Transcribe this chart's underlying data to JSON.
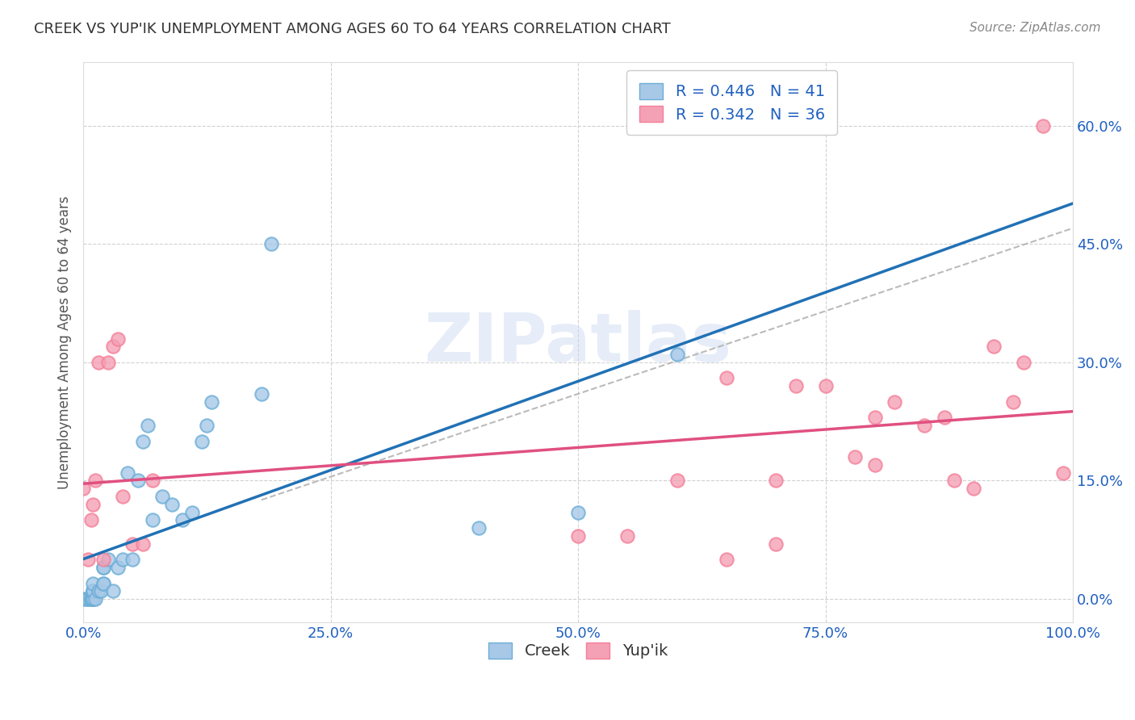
{
  "title": "CREEK VS YUP'IK UNEMPLOYMENT AMONG AGES 60 TO 64 YEARS CORRELATION CHART",
  "source": "Source: ZipAtlas.com",
  "ylabel": "Unemployment Among Ages 60 to 64 years",
  "creek_R": 0.446,
  "creek_N": 41,
  "yupik_R": 0.342,
  "yupik_N": 36,
  "creek_color": "#a8c8e8",
  "yupik_color": "#f4a0b5",
  "creek_edge_color": "#6baed6",
  "yupik_edge_color": "#f48099",
  "creek_line_color": "#2171b5",
  "yupik_line_color": "#e05080",
  "legend_text_color": "#2060c0",
  "background_color": "#ffffff",
  "creek_x": [
    0.0,
    0.003,
    0.005,
    0.007,
    0.008,
    0.01,
    0.01,
    0.01,
    0.01,
    0.01,
    0.01,
    0.01,
    0.012,
    0.015,
    0.018,
    0.02,
    0.02,
    0.02,
    0.02,
    0.025,
    0.03,
    0.035,
    0.04,
    0.045,
    0.05,
    0.055,
    0.06,
    0.065,
    0.07,
    0.08,
    0.09,
    0.1,
    0.11,
    0.12,
    0.125,
    0.13,
    0.18,
    0.19,
    0.4,
    0.5,
    0.6
  ],
  "creek_y": [
    0.0,
    0.0,
    0.0,
    0.0,
    0.0,
    0.0,
    0.0,
    0.0,
    0.01,
    0.01,
    0.01,
    0.02,
    0.0,
    0.01,
    0.01,
    0.02,
    0.02,
    0.04,
    0.04,
    0.05,
    0.01,
    0.04,
    0.05,
    0.16,
    0.05,
    0.15,
    0.2,
    0.22,
    0.1,
    0.13,
    0.12,
    0.1,
    0.11,
    0.2,
    0.22,
    0.25,
    0.26,
    0.45,
    0.09,
    0.11,
    0.31
  ],
  "yupik_x": [
    0.0,
    0.005,
    0.008,
    0.01,
    0.012,
    0.015,
    0.02,
    0.025,
    0.03,
    0.035,
    0.04,
    0.05,
    0.06,
    0.07,
    0.5,
    0.55,
    0.6,
    0.65,
    0.65,
    0.7,
    0.7,
    0.72,
    0.75,
    0.78,
    0.8,
    0.8,
    0.82,
    0.85,
    0.87,
    0.88,
    0.9,
    0.92,
    0.94,
    0.95,
    0.97,
    0.99
  ],
  "yupik_y": [
    0.14,
    0.05,
    0.1,
    0.12,
    0.15,
    0.3,
    0.05,
    0.3,
    0.32,
    0.33,
    0.13,
    0.07,
    0.07,
    0.15,
    0.08,
    0.08,
    0.15,
    0.05,
    0.28,
    0.07,
    0.15,
    0.27,
    0.27,
    0.18,
    0.17,
    0.23,
    0.25,
    0.22,
    0.23,
    0.15,
    0.14,
    0.32,
    0.25,
    0.3,
    0.6,
    0.16
  ],
  "xlim": [
    0.0,
    1.0
  ],
  "ylim": [
    -0.03,
    0.68
  ],
  "xticks": [
    0.0,
    0.25,
    0.5,
    0.75,
    1.0
  ],
  "xtick_labels": [
    "0.0%",
    "25.0%",
    "50.0%",
    "75.0%",
    "100.0%"
  ],
  "yticks": [
    0.0,
    0.15,
    0.3,
    0.45,
    0.6
  ],
  "ytick_labels": [
    "0.0%",
    "15.0%",
    "30.0%",
    "45.0%",
    "60.0%"
  ]
}
